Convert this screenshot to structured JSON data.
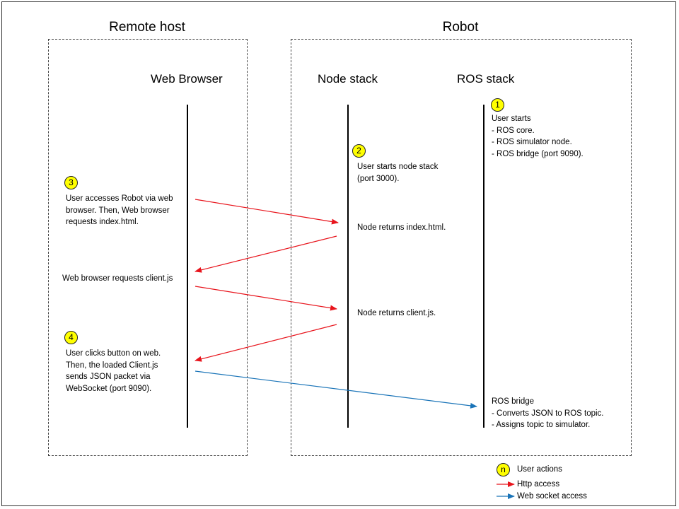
{
  "regions": {
    "remote_host": "Remote host",
    "robot": "Robot"
  },
  "columns": {
    "web_browser": "Web Browser",
    "node_stack": "Node stack",
    "ros_stack": "ROS stack"
  },
  "steps": [
    {
      "badge": "1",
      "text": "User starts\n- ROS core.\n- ROS simulator node.\n- ROS bridge (port 9090)."
    },
    {
      "badge": "2",
      "text": "User starts node stack\n(port 3000)."
    },
    {
      "badge": "3",
      "text": "User accesses Robot via web\nbrowser. Then, Web browser\nrequests index.html."
    },
    {
      "badge": "4",
      "text": "User clicks button on web.\nThen, the  loaded Client.js\nsends JSON packet via\nWebSocket (port 9090)."
    }
  ],
  "messages": {
    "node_returns_index": "Node returns index.html.",
    "browser_requests_client": "Web browser requests client.js",
    "node_returns_client": "Node returns client.js.",
    "ros_bridge": "ROS bridge\n- Converts JSON to ROS topic.\n- Assigns topic to simulator."
  },
  "legend": {
    "badge": "n",
    "user_actions": "User actions",
    "http": "Http access",
    "websocket": "Web socket access"
  },
  "colors": {
    "http": "#e8141c",
    "websocket": "#1a74b8",
    "badge": "#ffff00"
  }
}
